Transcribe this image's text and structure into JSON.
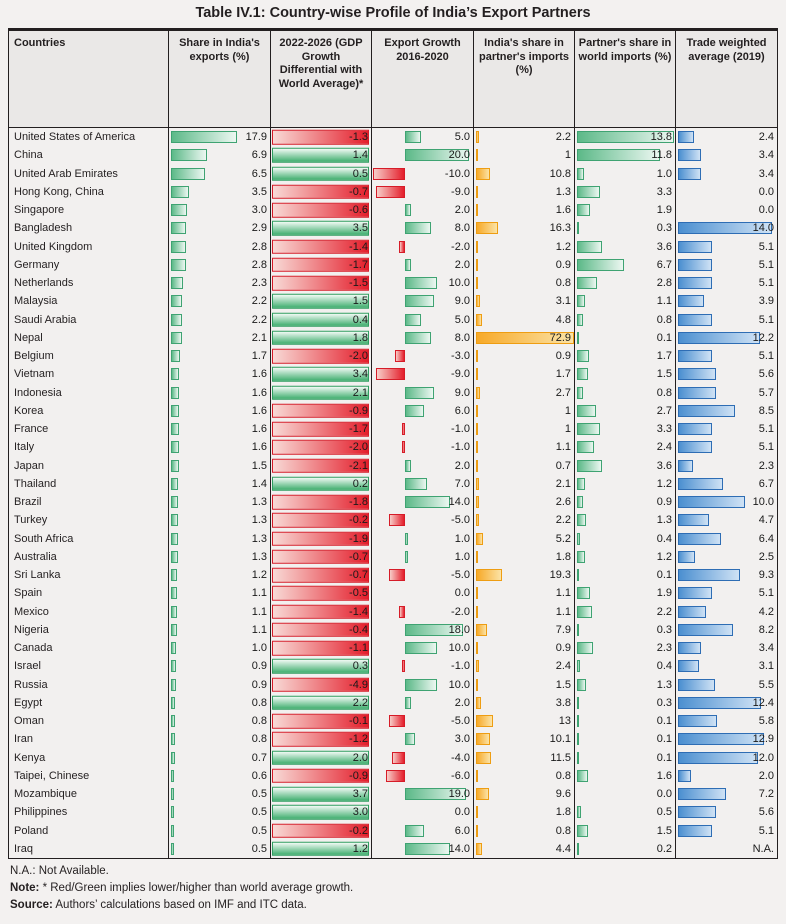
{
  "title": "Table IV.1: Country-wise Profile of India’s Export Partners",
  "colors": {
    "green_border": "#3fa372",
    "green_fill": "#5cb988",
    "red_border": "#d61c28",
    "red_fill": "#e41e2b",
    "amber_border": "#ee9d12",
    "amber_fill": "#f7a928",
    "blue_border": "#2e6db4",
    "blue_fill": "#4b8fd0",
    "text": "#231f20",
    "header_bg": "#eae8e7",
    "body_bg": "#f2f0ef"
  },
  "chart_data": {
    "type": "table",
    "title": "Table IV.1: Country-wise Profile of India’s Export Partners",
    "columns": [
      "Countries",
      "Share in India's exports (%)",
      "2022-2026 (GDP Growth Differential with World Average)*",
      "Export Growth 2016-2020",
      "India's share in  partner's imports (%)",
      "Partner's share in world imports (%)",
      "Trade weighted average (2019)"
    ],
    "bar_styles_by_column": {
      "share_exports": "green-left-bar",
      "gdp_diff": "full-width red=negative green=positive",
      "export_growth": "green-positive red-negative from baseline",
      "india_share": "amber-left-bar",
      "partner_share": "green-left-bar",
      "trade_weighted": "blue-left-bar"
    },
    "rows": [
      [
        "United States of America",
        "17.9",
        "-1.3",
        "5.0",
        "2.2",
        "13.8",
        "2.4"
      ],
      [
        "China",
        "6.9",
        "1.4",
        "20.0",
        "1",
        "11.8",
        "3.4"
      ],
      [
        "United Arab Emirates",
        "6.5",
        "0.5",
        "-10.0",
        "10.8",
        "1.0",
        "3.4"
      ],
      [
        "Hong Kong, China",
        "3.5",
        "-0.7",
        "-9.0",
        "1.3",
        "3.3",
        "0.0"
      ],
      [
        "Singapore",
        "3.0",
        "-0.6",
        "2.0",
        "1.6",
        "1.9",
        "0.0"
      ],
      [
        "Bangladesh",
        "2.9",
        "3.5",
        "8.0",
        "16.3",
        "0.3",
        "14.0"
      ],
      [
        "United Kingdom",
        "2.8",
        "-1.4",
        "-2.0",
        "1.2",
        "3.6",
        "5.1"
      ],
      [
        "Germany",
        "2.8",
        "-1.7",
        "2.0",
        "0.9",
        "6.7",
        "5.1"
      ],
      [
        "Netherlands",
        "2.3",
        "-1.5",
        "10.0",
        "0.8",
        "2.8",
        "5.1"
      ],
      [
        "Malaysia",
        "2.2",
        "1.5",
        "9.0",
        "3.1",
        "1.1",
        "3.9"
      ],
      [
        "Saudi Arabia",
        "2.2",
        "0.4",
        "5.0",
        "4.8",
        "0.8",
        "5.1"
      ],
      [
        "Nepal",
        "2.1",
        "1.8",
        "8.0",
        "72.9",
        "0.1",
        "12.2"
      ],
      [
        "Belgium",
        "1.7",
        "-2.0",
        "-3.0",
        "0.9",
        "1.7",
        "5.1"
      ],
      [
        "Vietnam",
        "1.6",
        "3.4",
        "-9.0",
        "1.7",
        "1.5",
        "5.6"
      ],
      [
        "Indonesia",
        "1.6",
        "2.1",
        "9.0",
        "2.7",
        "0.8",
        "5.7"
      ],
      [
        "Korea",
        "1.6",
        "-0.9",
        "6.0",
        "1",
        "2.7",
        "8.5"
      ],
      [
        "France",
        "1.6",
        "-1.7",
        "-1.0",
        "1",
        "3.3",
        "5.1"
      ],
      [
        "Italy",
        "1.6",
        "-2.0",
        "-1.0",
        "1.1",
        "2.4",
        "5.1"
      ],
      [
        "Japan",
        "1.5",
        "-2.1",
        "2.0",
        "0.7",
        "3.6",
        "2.3"
      ],
      [
        "Thailand",
        "1.4",
        "0.2",
        "7.0",
        "2.1",
        "1.2",
        "6.7"
      ],
      [
        "Brazil",
        "1.3",
        "-1.8",
        "14.0",
        "2.6",
        "0.9",
        "10.0"
      ],
      [
        "Turkey",
        "1.3",
        "-0.2",
        "-5.0",
        "2.2",
        "1.3",
        "4.7"
      ],
      [
        "South Africa",
        "1.3",
        "-1.9",
        "1.0",
        "5.2",
        "0.4",
        "6.4"
      ],
      [
        "Australia",
        "1.3",
        "-0.7",
        "1.0",
        "1.8",
        "1.2",
        "2.5"
      ],
      [
        "Sri Lanka",
        "1.2",
        "-0.7",
        "-5.0",
        "19.3",
        "0.1",
        "9.3"
      ],
      [
        "Spain",
        "1.1",
        "-0.5",
        "0.0",
        "1.1",
        "1.9",
        "5.1"
      ],
      [
        "Mexico",
        "1.1",
        "-1.4",
        "-2.0",
        "1.1",
        "2.2",
        "4.2"
      ],
      [
        "Nigeria",
        "1.1",
        "-0.4",
        "18.0",
        "7.9",
        "0.3",
        "8.2"
      ],
      [
        "Canada",
        "1.0",
        "-1.1",
        "10.0",
        "0.9",
        "2.3",
        "3.4"
      ],
      [
        "Israel",
        "0.9",
        "0.3",
        "-1.0",
        "2.4",
        "0.4",
        "3.1"
      ],
      [
        "Russia",
        "0.9",
        "-4.9",
        "10.0",
        "1.5",
        "1.3",
        "5.5"
      ],
      [
        "Egypt",
        "0.8",
        "2.2",
        "2.0",
        "3.8",
        "0.3",
        "12.4"
      ],
      [
        "Oman",
        "0.8",
        "-0.1",
        "-5.0",
        "13",
        "0.1",
        "5.8"
      ],
      [
        "Iran",
        "0.8",
        "-1.2",
        "3.0",
        "10.1",
        "0.1",
        "12.9"
      ],
      [
        "Kenya",
        "0.7",
        "2.0",
        "-4.0",
        "11.5",
        "0.1",
        "12.0"
      ],
      [
        "Taipei, Chinese",
        "0.6",
        "-0.9",
        "-6.0",
        "0.8",
        "1.6",
        "2.0"
      ],
      [
        "Mozambique",
        "0.5",
        "3.7",
        "19.0",
        "9.6",
        "0.0",
        "7.2"
      ],
      [
        "Philippines",
        "0.5",
        "3.0",
        "0.0",
        "1.8",
        "0.5",
        "5.6"
      ],
      [
        "Poland",
        "0.5",
        "-0.2",
        "6.0",
        "0.8",
        "1.5",
        "5.1"
      ],
      [
        "Iraq",
        "0.5",
        "1.2",
        "14.0",
        "4.4",
        "0.2",
        "N.A."
      ]
    ]
  },
  "footer": {
    "na_line": "N.A.: Not Available.",
    "note_prefix": "Note:",
    "note_text": " * Red/Green implies lower/higher than world average growth.",
    "source_prefix": "Source:",
    "source_text": " Authors’ calculations based on IMF and ITC data."
  }
}
